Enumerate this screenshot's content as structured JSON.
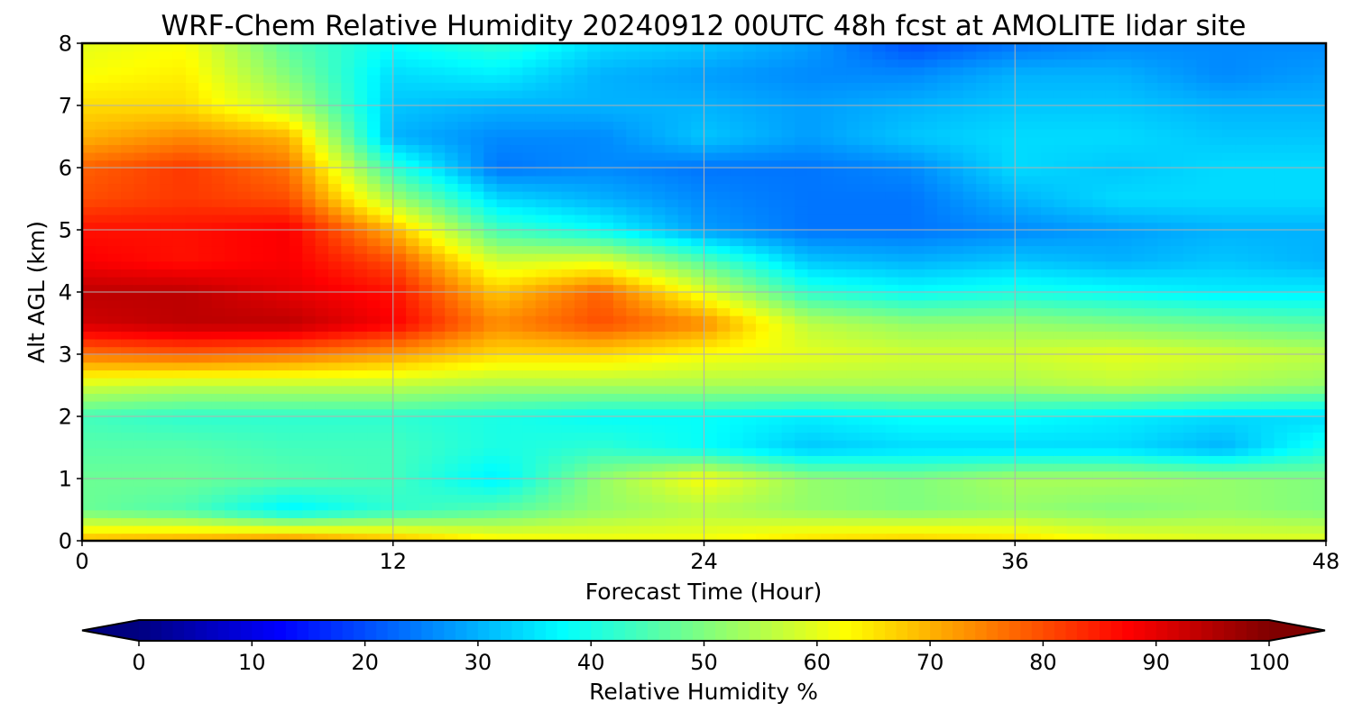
{
  "chart_data": {
    "type": "heatmap",
    "subtype": "filled-contour",
    "title": "WRF-Chem Relative Humidity 20240912 00UTC 48h fcst at AMOLITE lidar site",
    "xlabel": "Forecast Time (Hour)",
    "ylabel": "Alt AGL (km)",
    "xlim": [
      0,
      48
    ],
    "ylim": [
      0,
      8
    ],
    "xticks": [
      0,
      12,
      24,
      36,
      48
    ],
    "yticks": [
      0,
      1,
      2,
      3,
      4,
      5,
      6,
      7,
      8
    ],
    "grid": true,
    "colormap": "jet",
    "colorbar": {
      "label": "Relative Humidity %",
      "orientation": "horizontal",
      "placement": "bottom",
      "range": [
        0,
        100
      ],
      "ticks": [
        0,
        10,
        20,
        30,
        40,
        50,
        60,
        70,
        80,
        90,
        100
      ],
      "extend": "both"
    },
    "x": [
      0,
      4,
      8,
      12,
      16,
      20,
      24,
      28,
      32,
      36,
      40,
      44,
      48
    ],
    "y": [
      0,
      0.5,
      1,
      1.5,
      2,
      2.5,
      3,
      3.5,
      4,
      4.5,
      5,
      5.5,
      6,
      6.5,
      7,
      7.5,
      8
    ],
    "z": [
      [
        70,
        72,
        75,
        70,
        64,
        62,
        62,
        66,
        68,
        66,
        62,
        60,
        60
      ],
      [
        48,
        45,
        36,
        42,
        46,
        52,
        55,
        52,
        50,
        52,
        50,
        52,
        50
      ],
      [
        48,
        48,
        46,
        44,
        36,
        52,
        62,
        52,
        50,
        54,
        54,
        52,
        50
      ],
      [
        46,
        46,
        44,
        44,
        40,
        42,
        38,
        32,
        34,
        34,
        34,
        30,
        40
      ],
      [
        44,
        42,
        42,
        42,
        40,
        38,
        38,
        36,
        38,
        38,
        36,
        34,
        34
      ],
      [
        58,
        56,
        56,
        56,
        54,
        54,
        54,
        54,
        54,
        54,
        56,
        54,
        52
      ],
      [
        76,
        78,
        76,
        72,
        66,
        66,
        62,
        60,
        58,
        58,
        60,
        58,
        56
      ],
      [
        92,
        94,
        94,
        88,
        74,
        80,
        74,
        56,
        52,
        52,
        50,
        48,
        46
      ],
      [
        94,
        94,
        90,
        86,
        68,
        78,
        60,
        42,
        38,
        40,
        38,
        36,
        36
      ],
      [
        88,
        86,
        88,
        80,
        58,
        60,
        46,
        32,
        30,
        32,
        30,
        32,
        30
      ],
      [
        86,
        86,
        88,
        70,
        44,
        38,
        28,
        24,
        24,
        26,
        28,
        30,
        30
      ],
      [
        80,
        82,
        80,
        54,
        34,
        30,
        26,
        24,
        24,
        30,
        34,
        34,
        34
      ],
      [
        78,
        82,
        76,
        42,
        24,
        26,
        24,
        24,
        26,
        34,
        32,
        34,
        34
      ],
      [
        70,
        74,
        70,
        30,
        26,
        26,
        32,
        28,
        32,
        34,
        34,
        32,
        32
      ],
      [
        66,
        66,
        56,
        32,
        30,
        30,
        30,
        28,
        30,
        32,
        32,
        30,
        30
      ],
      [
        62,
        64,
        50,
        34,
        36,
        30,
        28,
        26,
        26,
        30,
        30,
        26,
        28
      ],
      [
        60,
        62,
        46,
        38,
        42,
        34,
        32,
        28,
        20,
        24,
        26,
        26,
        26
      ]
    ]
  }
}
